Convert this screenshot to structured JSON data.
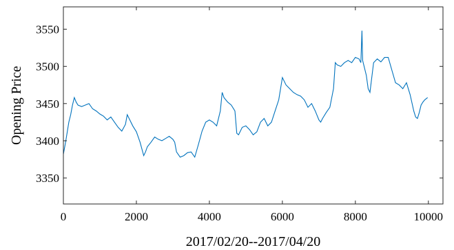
{
  "chart_data": {
    "type": "line",
    "title": "",
    "xlabel": "2017/02/20--2017/04/20",
    "ylabel": "Opening Price",
    "xlim": [
      0,
      10400
    ],
    "ylim": [
      3315,
      3580
    ],
    "xticks": [
      0,
      2000,
      4000,
      6000,
      8000,
      10000
    ],
    "yticks": [
      3350,
      3400,
      3450,
      3500,
      3550
    ],
    "xtick_labels": [
      "0",
      "2000",
      "4000",
      "6000",
      "8000",
      "10000"
    ],
    "ytick_labels": [
      "3350",
      "3400",
      "3450",
      "3500",
      "3550"
    ],
    "grid": false,
    "box": true,
    "line_color": "#0072BD",
    "series": [
      {
        "points": [
          [
            0,
            3382
          ],
          [
            50,
            3395
          ],
          [
            100,
            3410
          ],
          [
            150,
            3425
          ],
          [
            200,
            3435
          ],
          [
            250,
            3448
          ],
          [
            300,
            3458
          ],
          [
            350,
            3452
          ],
          [
            400,
            3448
          ],
          [
            500,
            3446
          ],
          [
            600,
            3448
          ],
          [
            700,
            3450
          ],
          [
            800,
            3443
          ],
          [
            900,
            3440
          ],
          [
            1000,
            3436
          ],
          [
            1100,
            3433
          ],
          [
            1200,
            3428
          ],
          [
            1300,
            3432
          ],
          [
            1400,
            3425
          ],
          [
            1500,
            3418
          ],
          [
            1600,
            3413
          ],
          [
            1700,
            3422
          ],
          [
            1750,
            3435
          ],
          [
            1800,
            3430
          ],
          [
            1900,
            3420
          ],
          [
            2000,
            3412
          ],
          [
            2100,
            3398
          ],
          [
            2200,
            3380
          ],
          [
            2250,
            3385
          ],
          [
            2300,
            3392
          ],
          [
            2400,
            3398
          ],
          [
            2500,
            3405
          ],
          [
            2600,
            3402
          ],
          [
            2700,
            3400
          ],
          [
            2800,
            3403
          ],
          [
            2900,
            3406
          ],
          [
            3000,
            3402
          ],
          [
            3050,
            3398
          ],
          [
            3100,
            3385
          ],
          [
            3200,
            3378
          ],
          [
            3300,
            3380
          ],
          [
            3400,
            3384
          ],
          [
            3500,
            3385
          ],
          [
            3600,
            3378
          ],
          [
            3700,
            3395
          ],
          [
            3800,
            3413
          ],
          [
            3900,
            3425
          ],
          [
            4000,
            3428
          ],
          [
            4100,
            3425
          ],
          [
            4200,
            3420
          ],
          [
            4300,
            3440
          ],
          [
            4350,
            3465
          ],
          [
            4400,
            3458
          ],
          [
            4500,
            3452
          ],
          [
            4600,
            3448
          ],
          [
            4700,
            3440
          ],
          [
            4750,
            3410
          ],
          [
            4800,
            3408
          ],
          [
            4900,
            3418
          ],
          [
            5000,
            3420
          ],
          [
            5100,
            3415
          ],
          [
            5200,
            3408
          ],
          [
            5300,
            3412
          ],
          [
            5400,
            3425
          ],
          [
            5500,
            3430
          ],
          [
            5600,
            3420
          ],
          [
            5700,
            3425
          ],
          [
            5800,
            3440
          ],
          [
            5900,
            3455
          ],
          [
            6000,
            3485
          ],
          [
            6100,
            3475
          ],
          [
            6200,
            3470
          ],
          [
            6300,
            3465
          ],
          [
            6400,
            3462
          ],
          [
            6500,
            3460
          ],
          [
            6600,
            3455
          ],
          [
            6700,
            3445
          ],
          [
            6800,
            3450
          ],
          [
            6900,
            3440
          ],
          [
            7000,
            3428
          ],
          [
            7050,
            3425
          ],
          [
            7100,
            3430
          ],
          [
            7200,
            3438
          ],
          [
            7300,
            3445
          ],
          [
            7400,
            3470
          ],
          [
            7450,
            3505
          ],
          [
            7500,
            3502
          ],
          [
            7600,
            3500
          ],
          [
            7700,
            3505
          ],
          [
            7800,
            3508
          ],
          [
            7900,
            3505
          ],
          [
            8000,
            3512
          ],
          [
            8100,
            3510
          ],
          [
            8150,
            3505
          ],
          [
            8180,
            3548
          ],
          [
            8200,
            3508
          ],
          [
            8300,
            3488
          ],
          [
            8350,
            3470
          ],
          [
            8400,
            3465
          ],
          [
            8500,
            3505
          ],
          [
            8600,
            3510
          ],
          [
            8700,
            3506
          ],
          [
            8800,
            3512
          ],
          [
            8900,
            3512
          ],
          [
            9000,
            3495
          ],
          [
            9100,
            3478
          ],
          [
            9200,
            3475
          ],
          [
            9300,
            3470
          ],
          [
            9400,
            3478
          ],
          [
            9500,
            3462
          ],
          [
            9600,
            3440
          ],
          [
            9650,
            3432
          ],
          [
            9700,
            3430
          ],
          [
            9750,
            3438
          ],
          [
            9800,
            3448
          ],
          [
            9850,
            3452
          ],
          [
            9900,
            3455
          ],
          [
            9980,
            3458
          ]
        ]
      }
    ]
  }
}
